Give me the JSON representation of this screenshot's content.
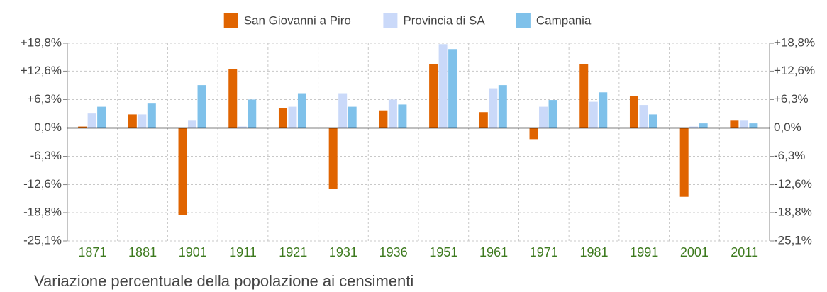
{
  "chart_data": {
    "type": "bar",
    "title": "Variazione percentuale della popolazione ai censimenti",
    "categories": [
      "1871",
      "1881",
      "1901",
      "1911",
      "1921",
      "1931",
      "1936",
      "1951",
      "1961",
      "1971",
      "1981",
      "1991",
      "2001",
      "2011"
    ],
    "series": [
      {
        "name": "San Giovanni a Piro",
        "color": "#e06400",
        "values": [
          0.3,
          3.0,
          -19.3,
          13.0,
          4.4,
          -13.6,
          3.9,
          14.2,
          3.5,
          -2.5,
          14.1,
          7.0,
          -15.3,
          1.6
        ]
      },
      {
        "name": "Provincia di SA",
        "color": "#cad9f9",
        "values": [
          3.2,
          3.0,
          1.6,
          0.3,
          4.7,
          7.7,
          6.3,
          18.6,
          8.8,
          4.7,
          5.8,
          5.1,
          0.3,
          1.6
        ]
      },
      {
        "name": "Campania",
        "color": "#7fc1ea",
        "values": [
          4.7,
          5.4,
          9.5,
          6.3,
          7.7,
          4.7,
          5.2,
          17.5,
          9.5,
          6.2,
          7.9,
          3.0,
          1.0,
          1.0
        ]
      }
    ],
    "ylim": [
      -25.1,
      18.8
    ],
    "yticks": [
      {
        "value": 18.8,
        "label": "+18,8%"
      },
      {
        "value": 12.6,
        "label": "+12,6%"
      },
      {
        "value": 6.3,
        "label": "+6,3%"
      },
      {
        "value": 0,
        "label": "0,0%"
      },
      {
        "value": -6.3,
        "label": "-6,3%"
      },
      {
        "value": -12.6,
        "label": "-12,6%"
      },
      {
        "value": -18.8,
        "label": "-18,8%"
      },
      {
        "value": -25.1,
        "label": "-25,1%"
      }
    ],
    "y2lim": [
      -25.1,
      18.8
    ],
    "y2ticks": [
      {
        "value": 18.8,
        "label": "+18,8%"
      },
      {
        "value": 12.6,
        "label": "+12,6%"
      },
      {
        "value": 6.3,
        "label": "+6,3%"
      },
      {
        "value": 0,
        "label": "0,0%"
      },
      {
        "value": -6.3,
        "label": "-6,3%"
      },
      {
        "value": -12.6,
        "label": "-12,6%"
      },
      {
        "value": -18.8,
        "label": "-18,8%"
      },
      {
        "value": -25.1,
        "label": "-25,1%"
      }
    ],
    "grid": true,
    "legend": "top"
  }
}
